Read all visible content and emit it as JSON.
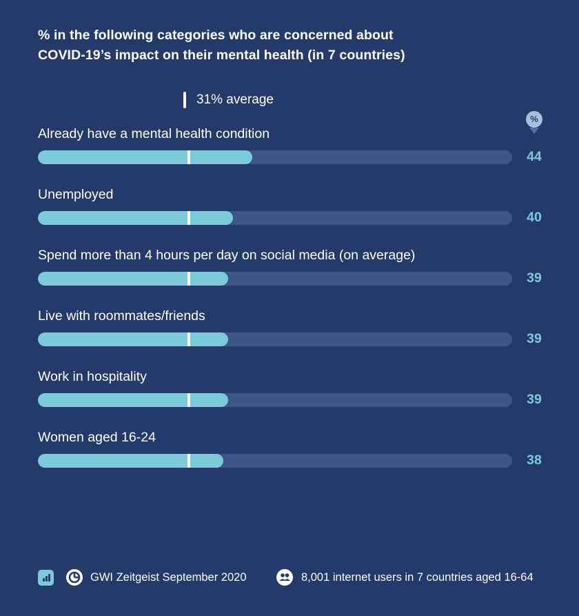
{
  "title_line1": "% in the following categories who are concerned about",
  "title_line2": "COVID-19’s impact on their mental health (in 7 countries)",
  "average_label": "31% average",
  "unit_badge": "%",
  "colors": {
    "background": "#233a6b",
    "bar": "#7ccbdb",
    "track": "#3d568a",
    "value_text": "#7ccbdb",
    "average_marker": "#ffffff"
  },
  "chart_data": {
    "type": "bar",
    "orientation": "horizontal",
    "categories": [
      "Already have a mental health condition",
      "Unemployed",
      "Spend more than 4 hours per day on social media (on average)",
      "Live with roommates/friends",
      "Work in hospitality",
      "Women aged 16-24"
    ],
    "values": [
      44,
      40,
      39,
      39,
      39,
      38
    ],
    "value_labels": [
      "44",
      "40",
      "39",
      "39",
      "39",
      "38"
    ],
    "average": 31,
    "xlim": [
      0,
      100
    ],
    "grid": false
  },
  "footer": {
    "source": "GWI Zeitgeist September 2020",
    "base": "8,001 internet users in 7 countries aged 16-64",
    "icons": [
      "bar-chart-icon",
      "gwi-logo-icon",
      "people-icon"
    ]
  }
}
